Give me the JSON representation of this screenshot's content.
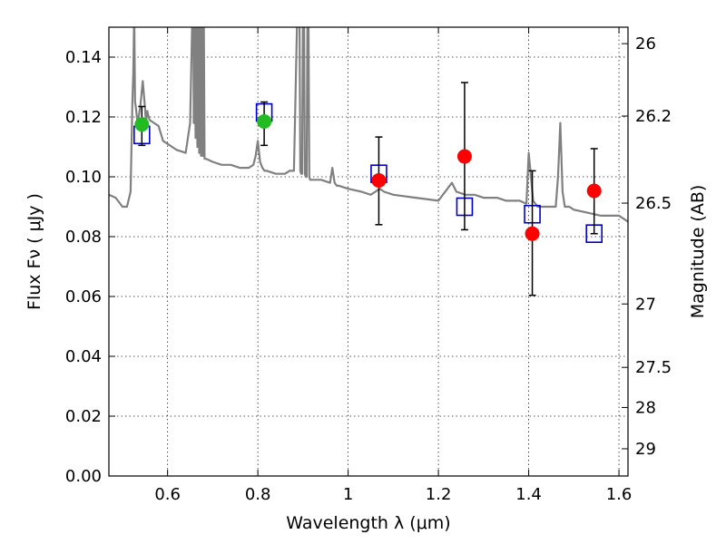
{
  "chart_data": {
    "type": "scatter",
    "title": "",
    "xlabel": "Wavelength  λ (μm)",
    "ylabel": "Flux  Fν  ( μJy )",
    "y2label": "Magnitude (AB)",
    "xlim": [
      0.47,
      1.62
    ],
    "ylim": [
      0.0,
      0.15
    ],
    "grid": true,
    "x_ticks": [
      0.6,
      0.8,
      1.0,
      1.2,
      1.4,
      1.6
    ],
    "x_tick_labels": [
      "0.6",
      "0.8",
      "1",
      "1.2",
      "1.4",
      "1.6"
    ],
    "y_ticks": [
      0.0,
      0.02,
      0.04,
      0.06,
      0.08,
      0.1,
      0.12,
      0.14
    ],
    "y_tick_labels": [
      "0.00",
      "0.02",
      "0.04",
      "0.06",
      "0.08",
      "0.10",
      "0.12",
      "0.14"
    ],
    "mag_ticks": [
      {
        "flux": 0.1445,
        "label": "26"
      },
      {
        "flux": 0.1203,
        "label": "26.2"
      },
      {
        "flux": 0.0912,
        "label": "26.5"
      },
      {
        "flux": 0.0575,
        "label": "27"
      },
      {
        "flux": 0.0363,
        "label": "27.5"
      },
      {
        "flux": 0.0229,
        "label": "28"
      },
      {
        "flux": 0.0091,
        "label": "29"
      }
    ],
    "series": [
      {
        "name": "model spectrum",
        "kind": "line",
        "color": "#808080",
        "x": [
          0.47,
          0.485,
          0.5,
          0.51,
          0.518,
          0.52,
          0.522,
          0.524,
          0.526,
          0.528,
          0.53,
          0.532,
          0.534,
          0.54,
          0.545,
          0.55,
          0.552,
          0.555,
          0.558,
          0.56,
          0.57,
          0.58,
          0.59,
          0.6,
          0.61,
          0.62,
          0.64,
          0.65,
          0.655,
          0.657,
          0.658,
          0.66,
          0.662,
          0.664,
          0.666,
          0.668,
          0.67,
          0.672,
          0.674,
          0.676,
          0.678,
          0.68,
          0.682,
          0.684,
          0.686,
          0.7,
          0.72,
          0.74,
          0.76,
          0.78,
          0.79,
          0.795,
          0.8,
          0.805,
          0.81,
          0.815,
          0.82,
          0.84,
          0.86,
          0.87,
          0.88,
          0.888,
          0.89,
          0.892,
          0.894,
          0.896,
          0.898,
          0.9,
          0.902,
          0.904,
          0.906,
          0.908,
          0.91,
          0.912,
          0.914,
          0.916,
          0.918,
          0.92,
          0.94,
          0.96,
          0.965,
          0.97,
          0.975,
          0.98,
          1.0,
          1.03,
          1.05,
          1.06,
          1.07,
          1.08,
          1.1,
          1.15,
          1.2,
          1.22,
          1.23,
          1.24,
          1.26,
          1.28,
          1.3,
          1.33,
          1.35,
          1.38,
          1.395,
          1.4,
          1.405,
          1.41,
          1.42,
          1.44,
          1.46,
          1.465,
          1.47,
          1.475,
          1.48,
          1.49,
          1.5,
          1.53,
          1.56,
          1.6,
          1.62
        ],
        "y": [
          0.094,
          0.093,
          0.09,
          0.09,
          0.095,
          0.11,
          0.125,
          0.135,
          0.155,
          0.125,
          0.123,
          0.12,
          0.118,
          0.124,
          0.132,
          0.123,
          0.118,
          0.122,
          0.12,
          0.119,
          0.118,
          0.117,
          0.112,
          0.111,
          0.11,
          0.109,
          0.108,
          0.118,
          0.155,
          0.16,
          0.118,
          0.16,
          0.113,
          0.16,
          0.11,
          0.16,
          0.108,
          0.16,
          0.107,
          0.16,
          0.107,
          0.16,
          0.106,
          0.106,
          0.106,
          0.105,
          0.104,
          0.104,
          0.103,
          0.103,
          0.104,
          0.107,
          0.112,
          0.105,
          0.103,
          0.102,
          0.102,
          0.101,
          0.101,
          0.102,
          0.102,
          0.16,
          0.16,
          0.16,
          0.102,
          0.101,
          0.101,
          0.16,
          0.16,
          0.101,
          0.1,
          0.1,
          0.16,
          0.16,
          0.1,
          0.099,
          0.099,
          0.099,
          0.099,
          0.098,
          0.103,
          0.098,
          0.097,
          0.097,
          0.096,
          0.095,
          0.094,
          0.095,
          0.096,
          0.095,
          0.094,
          0.093,
          0.092,
          0.096,
          0.098,
          0.095,
          0.094,
          0.094,
          0.093,
          0.093,
          0.092,
          0.092,
          0.091,
          0.108,
          0.1,
          0.092,
          0.09,
          0.09,
          0.09,
          0.1,
          0.118,
          0.095,
          0.09,
          0.09,
          0.089,
          0.088,
          0.087,
          0.087,
          0.085
        ]
      },
      {
        "name": "green observations",
        "kind": "points",
        "color": "#22bb22",
        "x": [
          0.543,
          0.814
        ],
        "y": [
          0.1175,
          0.1185
        ],
        "yerr": [
          [
            0.007,
            0.006
          ],
          [
            0.008,
            0.0065
          ]
        ]
      },
      {
        "name": "red observations",
        "kind": "points",
        "color": "#ff0000",
        "x": [
          1.068,
          1.258,
          1.408,
          1.545
        ],
        "y": [
          0.0988,
          0.1068,
          0.081,
          0.0953
        ],
        "yerr": [
          [
            0.0148,
            0.0145
          ],
          [
            0.0245,
            0.0247
          ],
          [
            0.0206,
            0.021
          ],
          [
            0.0143,
            0.0141
          ]
        ]
      },
      {
        "name": "model photometry",
        "kind": "open-squares",
        "color": "#0000cc",
        "x": [
          0.543,
          0.814,
          1.068,
          1.258,
          1.408,
          1.545
        ],
        "y": [
          0.114,
          0.1215,
          0.101,
          0.09,
          0.0875,
          0.081
        ]
      }
    ]
  }
}
